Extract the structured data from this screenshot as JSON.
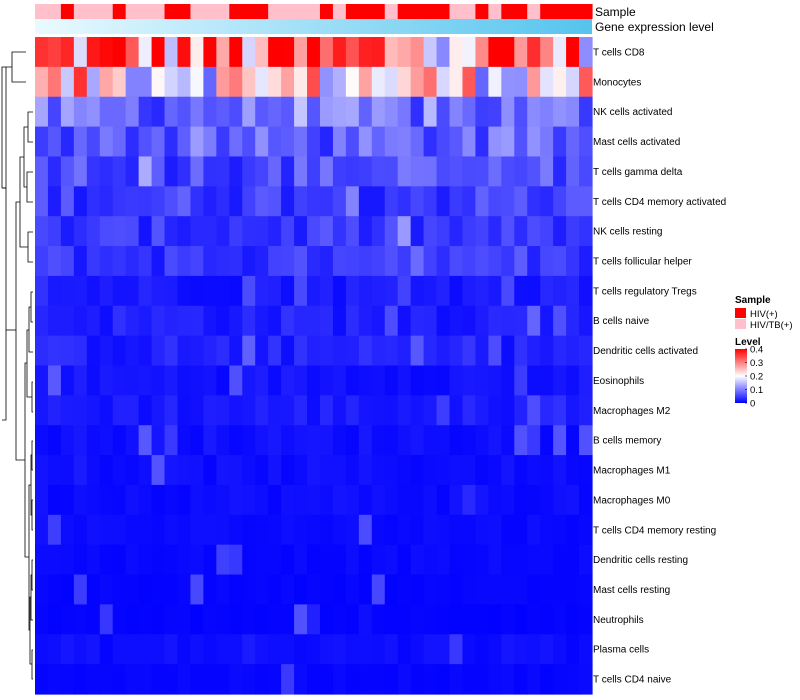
{
  "chart_data": {
    "type": "heatmap",
    "title": "",
    "column_annotations": [
      {
        "name": "Sample",
        "label": "Sample"
      },
      {
        "name": "Gene expression level",
        "label": "Gene expression level"
      }
    ],
    "rows": [
      "T cells CD8",
      "Monocytes",
      "NK cells activated",
      "Mast cells activated",
      "T cells gamma delta",
      "T cells CD4 memory activated",
      "NK cells resting",
      "T cells follicular helper",
      "T cells regulatory  Tregs",
      "B cells naive",
      "Dendritic cells activated",
      "Eosinophils",
      "Macrophages M2",
      "B cells memory",
      "Macrophages M1",
      "Macrophages M0",
      "T cells CD4 memory resting",
      "Dendritic cells resting",
      "Mast cells resting",
      "Neutrophils",
      "Plasma cells",
      "T cells CD4 naive"
    ],
    "columns": 43,
    "sample_groups": [
      1,
      1,
      0,
      1,
      1,
      1,
      0,
      1,
      1,
      1,
      0,
      0,
      1,
      1,
      1,
      0,
      0,
      0,
      1,
      1,
      1,
      1,
      0,
      1,
      0,
      0,
      0,
      1,
      0,
      0,
      0,
      0,
      1,
      1,
      0,
      1,
      0,
      0,
      1,
      0,
      0,
      0,
      0
    ],
    "row_means": [
      0.3,
      0.22,
      0.08,
      0.07,
      0.06,
      0.05,
      0.04,
      0.04,
      0.02,
      0.025,
      0.025,
      0.015,
      0.02,
      0.012,
      0.01,
      0.01,
      0.008,
      0.006,
      0.004,
      0.003,
      0.01,
      0.005
    ],
    "color_scale": {
      "min": 0,
      "max": 0.4,
      "low": "#0000ff",
      "mid": "#ffffff",
      "high": "#ff0000"
    },
    "legend": {
      "sample_title": "Sample",
      "sample_items": [
        {
          "label": "HIV(+)",
          "color": "#ff0000"
        },
        {
          "label": "HIV/TB(+)",
          "color": "#ffc0cb"
        }
      ],
      "level_title": "Level",
      "level_ticks": [
        "0.4",
        "0.3",
        "0.2",
        "0.1",
        "0"
      ],
      "level_values": [
        0.4,
        0.3,
        0.2,
        0.1,
        0
      ]
    },
    "expression_colors": {
      "start": "#eafaff",
      "end": "#55c4ee"
    }
  }
}
